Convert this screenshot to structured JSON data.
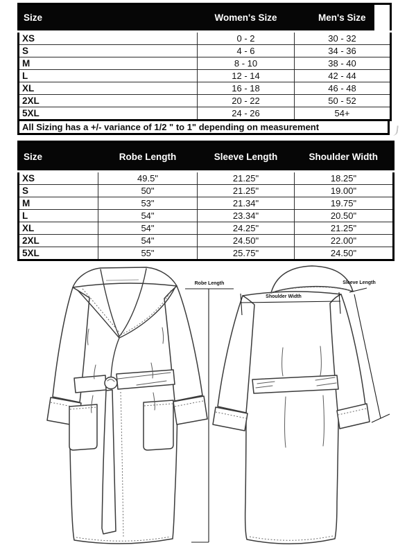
{
  "size_table": {
    "headers": [
      "Size",
      "Women's Size",
      "Men's Size"
    ],
    "rows": [
      [
        "XS",
        "0 - 2",
        "30 - 32"
      ],
      [
        "S",
        "4 - 6",
        "34 - 36"
      ],
      [
        "M",
        "8 - 10",
        "38 - 40"
      ],
      [
        "L",
        "12 - 14",
        "42 - 44"
      ],
      [
        "XL",
        "16 - 18",
        "46 - 48"
      ],
      [
        "2XL",
        "20 - 22",
        "50 - 52"
      ],
      [
        "5XL",
        "24 - 26",
        "54+"
      ]
    ],
    "note": "All Sizing has a +/- variance of  1/2 \" to 1\" depending on measurement"
  },
  "measurement_table": {
    "headers": [
      "Size",
      "Robe Length",
      "Sleeve Length",
      "Shoulder Width"
    ],
    "rows": [
      [
        "XS",
        "49.5\"",
        "21.25\"",
        "18.25\""
      ],
      [
        "S",
        "50\"",
        "21.25\"",
        "19.00\""
      ],
      [
        "M",
        "53\"",
        "21.34\"",
        "19.75\""
      ],
      [
        "L",
        "54\"",
        "23.34\"",
        "20.50\""
      ],
      [
        "XL",
        "54\"",
        "24.25\"",
        "21.25\""
      ],
      [
        "2XL",
        "54\"",
        "24.50\"",
        "22.00\""
      ],
      [
        "5XL",
        "55\"",
        "25.75\"",
        "24.50\""
      ]
    ]
  },
  "diagram": {
    "robe_length_label": "Robe Length",
    "shoulder_width_label": "Shoulder Width",
    "sleeve_length_label": "Sleeve Length"
  },
  "colors": {
    "header_bg": "#000000",
    "header_text": "#ffffff",
    "table_border": "#000000",
    "drawing_stroke": "#3a3a3a"
  }
}
